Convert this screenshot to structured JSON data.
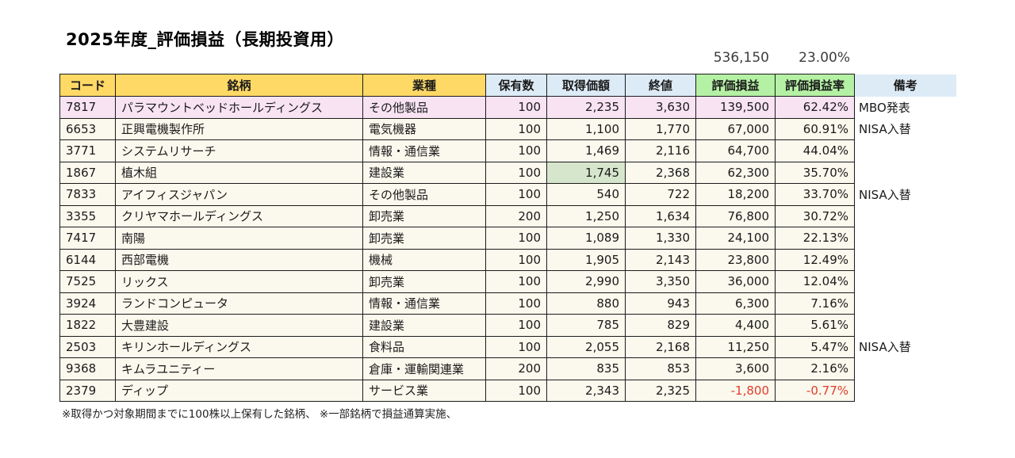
{
  "page": {
    "title": "2025年度_評価損益（長期投資用）",
    "footnote": "※取得かつ対象期間までに100株以上保有した銘柄、 ※一部銘柄で損益通算実施、"
  },
  "summary": {
    "total_gain": "536,150",
    "total_rate": "23.00%"
  },
  "table": {
    "headers": [
      "コード",
      "銘柄",
      "業種",
      "保有数",
      "取得価額",
      "終値",
      "評価損益",
      "評価損益率",
      "備考"
    ],
    "rows": [
      {
        "code": "7817",
        "name": "パラマウントベッドホールディングス",
        "industry": "その他製品",
        "shares": "100",
        "acquisition": "2,235",
        "close": "3,630",
        "gain": "139,500",
        "rate": "62.42%",
        "remark": "MBO発表",
        "row_highlight": true
      },
      {
        "code": "6653",
        "name": "正興電機製作所",
        "industry": "電気機器",
        "shares": "100",
        "acquisition": "1,100",
        "close": "1,770",
        "gain": "67,000",
        "rate": "60.91%",
        "remark": "NISA入替"
      },
      {
        "code": "3771",
        "name": "システムリサーチ",
        "industry": "情報・通信業",
        "shares": "100",
        "acquisition": "1,469",
        "close": "2,116",
        "gain": "64,700",
        "rate": "44.04%",
        "remark": ""
      },
      {
        "code": "1867",
        "name": "植木組",
        "industry": "建設業",
        "shares": "100",
        "acquisition": "1,745",
        "close": "2,368",
        "gain": "62,300",
        "rate": "35.70%",
        "remark": "",
        "acquisition_highlight": true
      },
      {
        "code": "7833",
        "name": "アイフィスジャパン",
        "industry": "その他製品",
        "shares": "100",
        "acquisition": "540",
        "close": "722",
        "gain": "18,200",
        "rate": "33.70%",
        "remark": "NISA入替"
      },
      {
        "code": "3355",
        "name": "クリヤマホールディングス",
        "industry": "卸売業",
        "shares": "200",
        "acquisition": "1,250",
        "close": "1,634",
        "gain": "76,800",
        "rate": "30.72%",
        "remark": ""
      },
      {
        "code": "7417",
        "name": "南陽",
        "industry": "卸売業",
        "shares": "100",
        "acquisition": "1,089",
        "close": "1,330",
        "gain": "24,100",
        "rate": "22.13%",
        "remark": ""
      },
      {
        "code": "6144",
        "name": "西部電機",
        "industry": "機械",
        "shares": "100",
        "acquisition": "1,905",
        "close": "2,143",
        "gain": "23,800",
        "rate": "12.49%",
        "remark": ""
      },
      {
        "code": "7525",
        "name": "リックス",
        "industry": "卸売業",
        "shares": "100",
        "acquisition": "2,990",
        "close": "3,350",
        "gain": "36,000",
        "rate": "12.04%",
        "remark": ""
      },
      {
        "code": "3924",
        "name": "ランドコンピュータ",
        "industry": "情報・通信業",
        "shares": "100",
        "acquisition": "880",
        "close": "943",
        "gain": "6,300",
        "rate": "7.16%",
        "remark": ""
      },
      {
        "code": "1822",
        "name": "大豊建設",
        "industry": "建設業",
        "shares": "100",
        "acquisition": "785",
        "close": "829",
        "gain": "4,400",
        "rate": "5.61%",
        "remark": ""
      },
      {
        "code": "2503",
        "name": "キリンホールディングス",
        "industry": "食料品",
        "shares": "100",
        "acquisition": "2,055",
        "close": "2,168",
        "gain": "11,250",
        "rate": "5.47%",
        "remark": "NISA入替"
      },
      {
        "code": "9368",
        "name": "キムラユニティー",
        "industry": "倉庫・運輸関連業",
        "shares": "200",
        "acquisition": "835",
        "close": "853",
        "gain": "3,600",
        "rate": "2.16%",
        "remark": ""
      },
      {
        "code": "2379",
        "name": "ディップ",
        "industry": "サービス業",
        "shares": "100",
        "acquisition": "2,343",
        "close": "2,325",
        "gain": "-1,800",
        "rate": "-0.77%",
        "remark": ""
      }
    ]
  },
  "colors": {
    "header_gold": "#FFD966",
    "header_blue": "#DDEBF7",
    "header_green": "#B5F1A4",
    "row_cream": "#FBF8ED",
    "highlight_pink": "#F8E3F3",
    "highlight_green": "#D6E6CD",
    "negative_red": "#E03C2D",
    "border": "#1b1b1b"
  }
}
